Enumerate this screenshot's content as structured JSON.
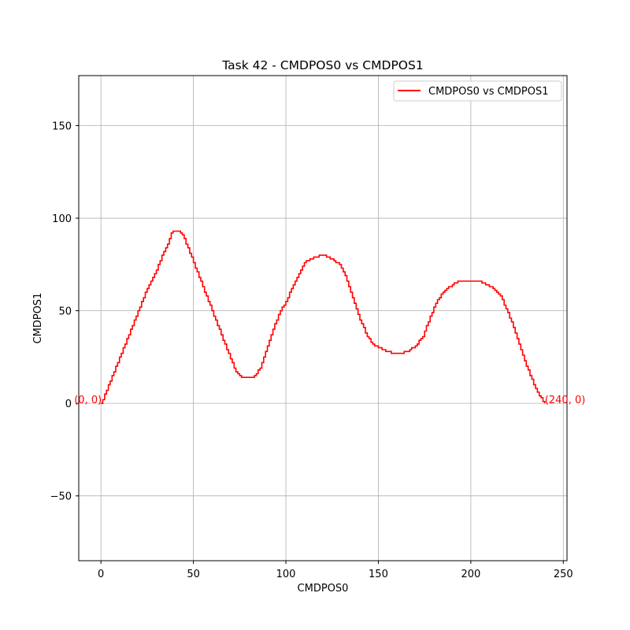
{
  "chart_data": {
    "type": "line",
    "title": "Task 42 - CMDPOS0 vs CMDPOS1",
    "xlabel": "CMDPOS0",
    "ylabel": "CMDPOS1",
    "xlim": [
      -12,
      252
    ],
    "ylim": [
      -85,
      177
    ],
    "xticks": [
      0,
      50,
      100,
      150,
      200,
      250
    ],
    "yticks": [
      -50,
      0,
      50,
      100,
      150
    ],
    "xtick_labels": [
      "0",
      "50",
      "100",
      "150",
      "200",
      "250"
    ],
    "ytick_labels": [
      "−50",
      "0",
      "50",
      "100",
      "150"
    ],
    "grid": true,
    "legend_position": "top-right",
    "series": [
      {
        "name": "CMDPOS0 vs CMDPOS1",
        "color": "#ff0000",
        "x": [
          0,
          5,
          10,
          15,
          20,
          25,
          30,
          33,
          36,
          38,
          40,
          42,
          44,
          47,
          50,
          55,
          60,
          65,
          70,
          73,
          76,
          78,
          80,
          82,
          84,
          86,
          88,
          92,
          96,
          100,
          104,
          108,
          110,
          113,
          116,
          120,
          123,
          126,
          129,
          132,
          136,
          140,
          144,
          147,
          150,
          155,
          158,
          162,
          166,
          170,
          174,
          178,
          182,
          186,
          190,
          194,
          198,
          202,
          205,
          208,
          212,
          216,
          219,
          222,
          226,
          230,
          234,
          237,
          239,
          240
        ],
        "y": [
          0,
          12,
          25,
          37,
          50,
          62,
          72,
          80,
          86,
          92,
          93,
          93,
          91,
          84,
          76,
          63,
          50,
          37,
          24,
          17,
          14,
          14,
          14,
          14,
          16,
          19,
          25,
          37,
          48,
          55,
          64,
          72,
          76,
          78,
          79,
          80,
          79,
          77,
          75,
          69,
          57,
          45,
          36,
          32,
          30,
          28,
          27,
          27,
          28,
          31,
          36,
          47,
          56,
          61,
          64,
          66,
          66,
          66,
          66,
          64,
          62,
          58,
          51,
          44,
          32,
          20,
          10,
          4,
          1,
          0
        ]
      }
    ],
    "annotations": [
      {
        "text": "(0, 0)",
        "x": 0,
        "y": 0,
        "color": "#ff0000"
      },
      {
        "text": "(240, 0)",
        "x": 240,
        "y": 0,
        "color": "#ff0000"
      }
    ]
  }
}
